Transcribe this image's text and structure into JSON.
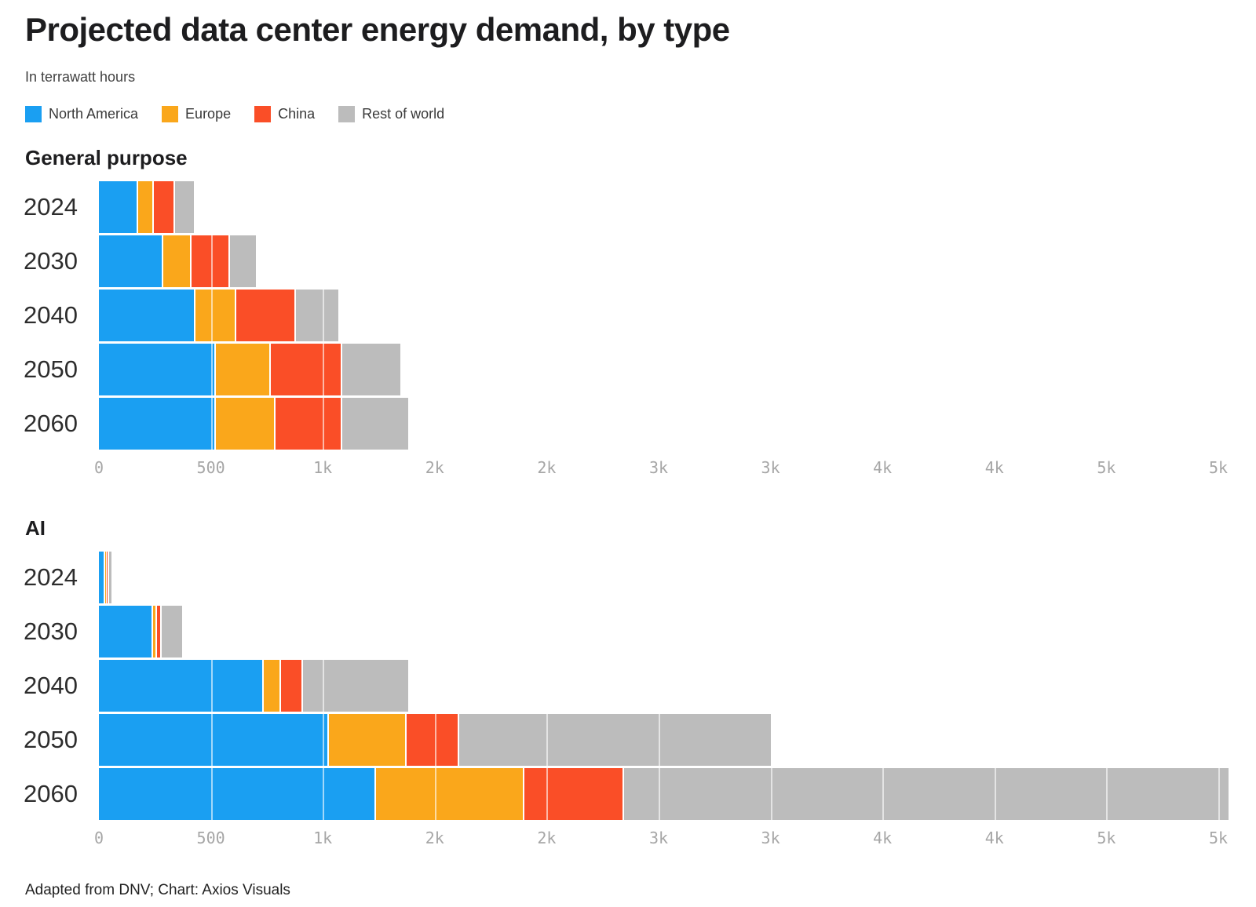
{
  "title": "Projected data center energy demand, by type",
  "subtitle": "In terrawatt hours",
  "legend": [
    {
      "label": "North America",
      "color": "#1a9ff2"
    },
    {
      "label": "Europe",
      "color": "#faa71b"
    },
    {
      "label": "China",
      "color": "#fa4e27"
    },
    {
      "label": "Rest of world",
      "color": "#bcbcbc"
    }
  ],
  "footer": "Adapted from DNV; Chart: Axios Visuals",
  "colors": {
    "north_america": "#1a9ff2",
    "europe": "#faa71b",
    "china": "#fa4e27",
    "rest_of_world": "#bcbcbc",
    "axis_text": "#a6a6a6"
  },
  "chart_data": [
    {
      "type": "bar",
      "title": "General purpose",
      "orientation": "horizontal",
      "stacked": true,
      "unit": "terawatt hours",
      "categories": [
        "2024",
        "2030",
        "2040",
        "2050",
        "2060"
      ],
      "series": [
        {
          "name": "North America",
          "color": "#1a9ff2",
          "values": [
            170,
            280,
            425,
            515,
            515
          ]
        },
        {
          "name": "Europe",
          "color": "#faa71b",
          "values": [
            60,
            120,
            175,
            240,
            260
          ]
        },
        {
          "name": "China",
          "color": "#fa4e27",
          "values": [
            90,
            165,
            260,
            310,
            290
          ]
        },
        {
          "name": "Rest of world",
          "color": "#bcbcbc",
          "values": [
            85,
            115,
            190,
            260,
            295
          ]
        }
      ],
      "xlim": [
        0,
        5000
      ],
      "x_tick_step": 500,
      "x_tick_labels": [
        "0",
        "500",
        "1k",
        "2k",
        "2k",
        "3k",
        "3k",
        "4k",
        "4k",
        "5k",
        "5k"
      ],
      "gridlines": "white overlay on bars"
    },
    {
      "type": "bar",
      "title": "AI",
      "orientation": "horizontal",
      "stacked": true,
      "unit": "terawatt hours",
      "categories": [
        "2024",
        "2030",
        "2040",
        "2050",
        "2060"
      ],
      "series": [
        {
          "name": "North America",
          "color": "#1a9ff2",
          "values": [
            20,
            235,
            730,
            1020,
            1230
          ]
        },
        {
          "name": "Europe",
          "color": "#faa71b",
          "values": [
            2,
            10,
            70,
            340,
            655
          ]
        },
        {
          "name": "China",
          "color": "#fa4e27",
          "values": [
            3,
            15,
            90,
            230,
            440
          ]
        },
        {
          "name": "Rest of world",
          "color": "#bcbcbc",
          "values": [
            10,
            90,
            470,
            1390,
            2700
          ]
        }
      ],
      "xlim": [
        0,
        5000
      ],
      "x_tick_step": 500,
      "x_tick_labels": [
        "0",
        "500",
        "1k",
        "2k",
        "2k",
        "3k",
        "3k",
        "4k",
        "4k",
        "5k",
        "5k"
      ],
      "gridlines": "white overlay on bars"
    }
  ]
}
